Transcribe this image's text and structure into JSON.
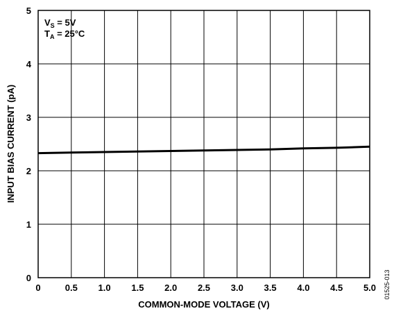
{
  "chart_data": {
    "type": "line",
    "xlabel": "COMMON-MODE VOLTAGE (V)",
    "ylabel": "INPUT BIAS CURRENT (pA)",
    "xlim": [
      0,
      5.0
    ],
    "ylim": [
      0,
      5
    ],
    "xticks": [
      "0",
      "0.5",
      "1.0",
      "1.5",
      "2.0",
      "2.5",
      "3.0",
      "3.5",
      "4.0",
      "4.5",
      "5.0"
    ],
    "yticks": [
      "0",
      "1",
      "2",
      "3",
      "4",
      "5"
    ],
    "grid": true,
    "annotation": {
      "line1_main": "V",
      "line1_sub": "S",
      "line1_rest": " = 5V",
      "line2_main": "T",
      "line2_sub": "A",
      "line2_rest": " = 25°C"
    },
    "figure_id": "01525-013",
    "series": [
      {
        "x": [
          0,
          0.5,
          1.0,
          1.5,
          2.0,
          2.5,
          3.0,
          3.5,
          4.0,
          4.5,
          5.0
        ],
        "y": [
          2.33,
          2.34,
          2.35,
          2.36,
          2.37,
          2.38,
          2.39,
          2.4,
          2.42,
          2.43,
          2.45
        ]
      }
    ]
  }
}
